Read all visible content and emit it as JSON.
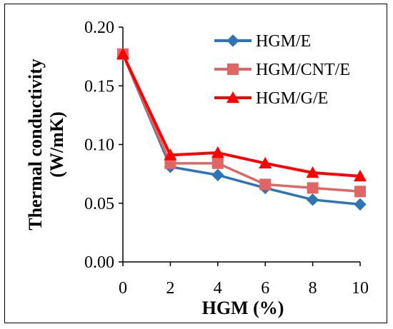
{
  "chart_data": {
    "type": "line",
    "xlabel": "HGM (%)",
    "ylabel": "Thermal conductivity (W/mK)",
    "ylabel_lines": [
      "Thermal conductivity",
      "(W/mK)"
    ],
    "xlim": [
      0,
      10
    ],
    "ylim": [
      0,
      0.2
    ],
    "x_ticks": [
      "0",
      "2",
      "4",
      "6",
      "8",
      "10"
    ],
    "y_ticks": [
      "0.00",
      "0.05",
      "0.10",
      "0.15",
      "0.20"
    ],
    "x": [
      0,
      2,
      4,
      6,
      8,
      10
    ],
    "grid": false,
    "legend_position": "top-right",
    "series": [
      {
        "name": "HGM/E",
        "color": "#2E75B6",
        "marker": "diamond",
        "values": [
          0.177,
          0.081,
          0.074,
          0.063,
          0.053,
          0.049
        ]
      },
      {
        "name": "HGM/CNT/E",
        "color": "#E06666",
        "marker": "square",
        "values": [
          0.177,
          0.084,
          0.084,
          0.066,
          0.063,
          0.06
        ]
      },
      {
        "name": "HGM/G/E",
        "color": "#FF0000",
        "marker": "triangle",
        "values": [
          0.177,
          0.091,
          0.093,
          0.084,
          0.076,
          0.073
        ]
      }
    ]
  }
}
